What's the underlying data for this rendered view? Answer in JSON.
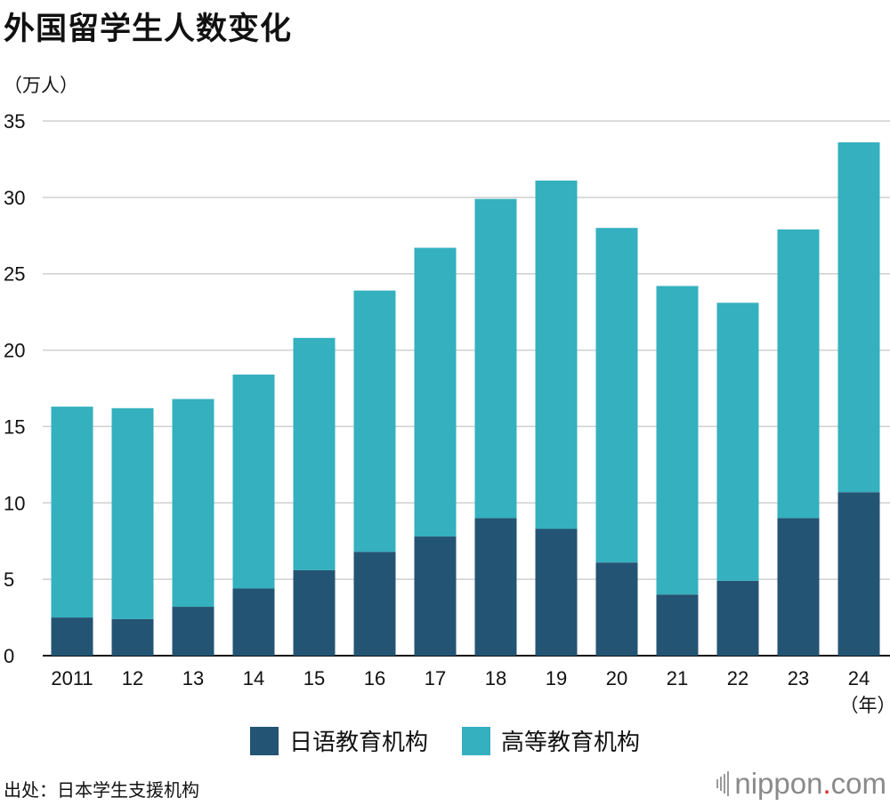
{
  "title": "外国留学生人数变化",
  "y_unit": "（万人）",
  "x_unit": "（年）",
  "source": "出处：日本学生支援机构",
  "brand": {
    "name": "nippon",
    "dot": ".",
    "tld": "com"
  },
  "colors": {
    "japanese": "#245473",
    "higher": "#34b0bf",
    "grid": "#cfcfcf",
    "axis": "#111111"
  },
  "chart_data": {
    "type": "bar",
    "stacked": true,
    "categories": [
      "2011",
      "12",
      "13",
      "14",
      "15",
      "16",
      "17",
      "18",
      "19",
      "20",
      "21",
      "22",
      "23",
      "24"
    ],
    "series": [
      {
        "name": "日语教育机构",
        "values": [
          2.5,
          2.4,
          3.2,
          4.4,
          5.6,
          6.8,
          7.8,
          9.0,
          8.3,
          6.1,
          4.0,
          4.9,
          9.0,
          10.7
        ]
      },
      {
        "name": "高等教育机构",
        "values": [
          13.8,
          13.8,
          13.6,
          14.0,
          15.2,
          17.1,
          18.9,
          20.9,
          22.8,
          21.9,
          20.2,
          18.2,
          18.9,
          22.9
        ]
      }
    ],
    "yticks": [
      0,
      5,
      10,
      15,
      20,
      25,
      30,
      35
    ],
    "ylim": [
      0,
      35
    ],
    "grid": true,
    "legend_position": "bottom-center"
  }
}
